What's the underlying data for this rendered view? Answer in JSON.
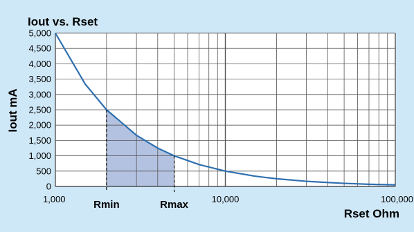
{
  "chart_data": {
    "type": "line",
    "title": "Iout vs. Rset",
    "xlabel": "Rset Ohm",
    "ylabel": "Iout mA",
    "x_scale": "log",
    "xlim": [
      1000,
      100000
    ],
    "ylim": [
      0,
      5000
    ],
    "x_tick_labels": [
      {
        "value": 1000,
        "label": "1,000"
      },
      {
        "value": 10000,
        "label": "10,000"
      },
      {
        "value": 100000,
        "label": "100,000"
      }
    ],
    "y_tick_labels": [
      {
        "value": 0,
        "label": "0"
      },
      {
        "value": 500,
        "label": "500"
      },
      {
        "value": 1000,
        "label": "1,000"
      },
      {
        "value": 1500,
        "label": "1,500"
      },
      {
        "value": 2000,
        "label": "2,000"
      },
      {
        "value": 2500,
        "label": "2,500"
      },
      {
        "value": 3000,
        "label": "3,000"
      },
      {
        "value": 3500,
        "label": "3,500"
      },
      {
        "value": 4000,
        "label": "4,000"
      },
      {
        "value": 4500,
        "label": "4,500"
      },
      {
        "value": 5000,
        "label": "5,000"
      }
    ],
    "grid": true,
    "series": [
      {
        "points": [
          {
            "x": 1000,
            "y": 5000
          },
          {
            "x": 1500,
            "y": 3333
          },
          {
            "x": 2000,
            "y": 2500
          },
          {
            "x": 3000,
            "y": 1667
          },
          {
            "x": 4000,
            "y": 1250
          },
          {
            "x": 5000,
            "y": 1000
          },
          {
            "x": 7000,
            "y": 714
          },
          {
            "x": 10000,
            "y": 500
          },
          {
            "x": 15000,
            "y": 333
          },
          {
            "x": 20000,
            "y": 250
          },
          {
            "x": 30000,
            "y": 167
          },
          {
            "x": 50000,
            "y": 100
          },
          {
            "x": 70000,
            "y": 71
          },
          {
            "x": 100000,
            "y": 50
          }
        ]
      }
    ],
    "markers": [
      {
        "label": "Rmin",
        "x": 2000,
        "y": 2500
      },
      {
        "label": "Rmax",
        "x": 5000,
        "y": 1000
      }
    ],
    "shaded_range": {
      "x_from": 2000,
      "x_to": 5000
    },
    "colors": {
      "background": "#cfe8f7",
      "plot_area": "#ffffff",
      "grid": "#555555",
      "curve": "#2e6fb0",
      "shade": "#a7b7dc"
    }
  }
}
